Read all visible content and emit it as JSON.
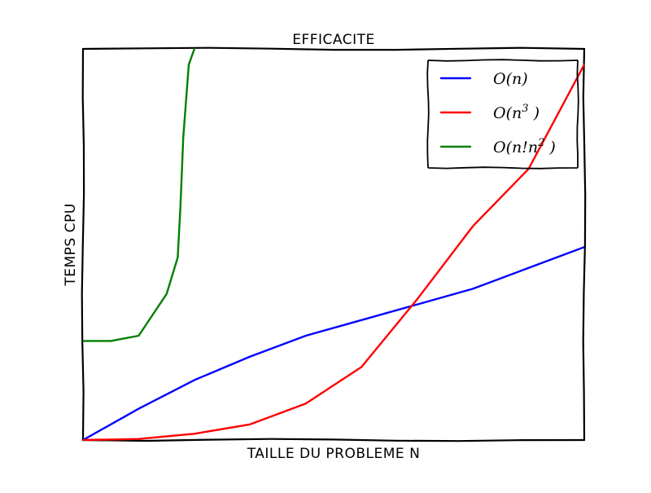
{
  "chart_data": {
    "type": "line",
    "title": "EFFICACITE",
    "xlabel": "TAILLE DU PROBLEME N",
    "ylabel": "TEMPS CPU",
    "xlim": [
      1,
      10
    ],
    "ylim": [
      0,
      7.5
    ],
    "grid": false,
    "ticks": false,
    "legend_position": "top-right",
    "series": [
      {
        "name": "O(n)",
        "color": "#0000ff",
        "x": [
          1,
          2,
          3,
          4,
          5,
          6,
          7,
          8,
          9,
          10
        ],
        "y": [
          0,
          0.6,
          1.15,
          1.6,
          2.0,
          2.3,
          2.6,
          2.9,
          3.3,
          3.7
        ]
      },
      {
        "name": "O(n^3 )",
        "color": "#ff0000",
        "x": [
          1,
          2,
          3,
          4,
          5,
          6,
          7,
          8,
          9,
          10
        ],
        "y": [
          0,
          0.02,
          0.12,
          0.3,
          0.7,
          1.4,
          2.7,
          4.1,
          5.2,
          7.2
        ]
      },
      {
        "name": "O(n!n^2 )",
        "color": "#008000",
        "x": [
          1,
          1.5,
          2,
          2.5,
          2.7,
          2.75,
          2.8,
          2.9,
          3.0
        ],
        "y": [
          1.9,
          1.9,
          2.0,
          2.8,
          3.5,
          4.5,
          5.8,
          7.2,
          7.5
        ]
      }
    ],
    "legend": {
      "entries": [
        {
          "prefix": "O(",
          "main": "n",
          "sup": "",
          "suffix": ")"
        },
        {
          "prefix": "O(",
          "main": "n",
          "sup": "3",
          "suffix": " )"
        },
        {
          "prefix": "O(",
          "main": "n!n",
          "sup": "2",
          "suffix": " )"
        }
      ]
    }
  }
}
